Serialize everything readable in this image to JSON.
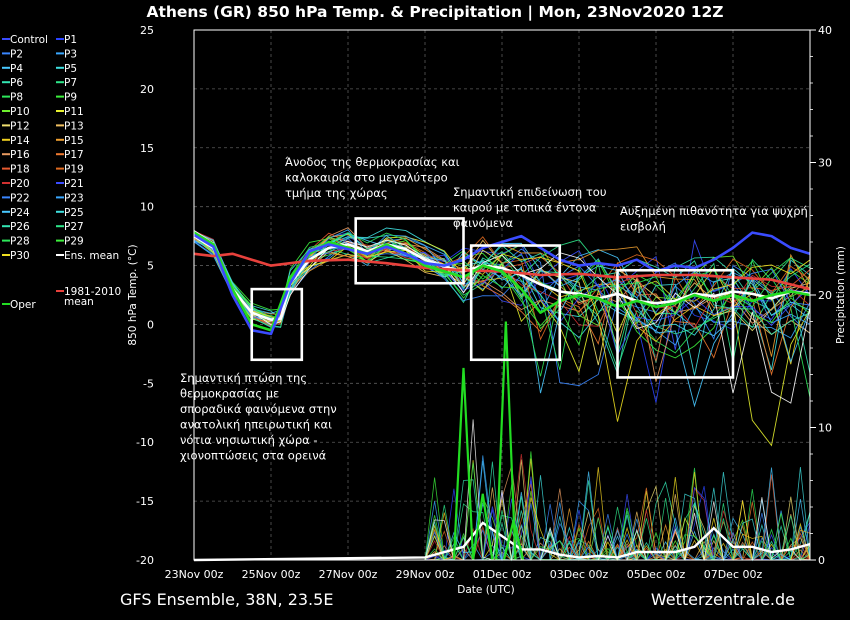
{
  "header": {
    "title": "Athens  (GR)  850 hPa Temp. & Precipitation | Mon, 23Nov2020 12Z"
  },
  "footer": {
    "model": "GFS Ensemble, 38N, 23.5E",
    "source": "Wetterzentrale.de"
  },
  "colors": {
    "background": "#000000",
    "grid": "#5a5a5a",
    "ensemble_mean": "#ffffff",
    "climate_mean": "#e8413c",
    "oper": "#22dd22",
    "control": "#3a4cff"
  },
  "chart_data": {
    "type": "line",
    "xlabel": "Date (UTC)",
    "ylabel": "850 hPa Temp. (°C)",
    "y2label": "Precipitation (mm)",
    "x_ticks": [
      "23Nov 00z",
      "25Nov 00z",
      "27Nov 00z",
      "29Nov 00z",
      "01Dec 00z",
      "03Dec 00z",
      "05Dec 00z",
      "07Dec 00z"
    ],
    "ylim": [
      -20,
      25
    ],
    "y_ticks": [
      25,
      20,
      15,
      10,
      5,
      0,
      -5,
      -10,
      -15,
      -20
    ],
    "y2lim": [
      0,
      40
    ],
    "y2_ticks": [
      40,
      30,
      20,
      10,
      0
    ],
    "grid": true,
    "legend_position": "left",
    "legend": [
      [
        "Control",
        "#3a4cff"
      ],
      [
        "P1",
        "#2b44ff"
      ],
      [
        "P2",
        "#3a86ff"
      ],
      [
        "P3",
        "#3aa8ff"
      ],
      [
        "P4",
        "#48c8ff"
      ],
      [
        "P5",
        "#3fe0e0"
      ],
      [
        "P6",
        "#33e6b3"
      ],
      [
        "P7",
        "#2ee68a"
      ],
      [
        "P8",
        "#2de85a"
      ],
      [
        "P9",
        "#3cf03c"
      ],
      [
        "P10",
        "#6ef02e"
      ],
      [
        "P11",
        "#e6f02e"
      ],
      [
        "P12",
        "#f0e070"
      ],
      [
        "P13",
        "#f0c060"
      ],
      [
        "P14",
        "#f0d020"
      ],
      [
        "P15",
        "#f0a030"
      ],
      [
        "P16",
        "#e89a60"
      ],
      [
        "P17",
        "#f07a30"
      ],
      [
        "P18",
        "#e85a30"
      ],
      [
        "P19",
        "#e06a20"
      ],
      [
        "P20",
        "#d03030"
      ],
      [
        "P21",
        "#3a4cff"
      ],
      [
        "P22",
        "#3a86ff"
      ],
      [
        "P23",
        "#3aa8ff"
      ],
      [
        "P24",
        "#48c8ff"
      ],
      [
        "P25",
        "#3fe0e0"
      ],
      [
        "P26",
        "#33e6b3"
      ],
      [
        "P27",
        "#2ee68a"
      ],
      [
        "P28",
        "#2de85a"
      ],
      [
        "P29",
        "#3cf03c"
      ],
      [
        "P30",
        "#f0e020"
      ],
      [
        "Ens. mean",
        "#ffffff"
      ],
      [
        "Oper",
        "#22dd22"
      ],
      [
        "1981-2010 mean",
        "#e8413c"
      ]
    ],
    "series": [
      {
        "name": "Ens. mean",
        "x_days": [
          0,
          0.5,
          1,
          1.5,
          2,
          2.25,
          2.5,
          3,
          3.5,
          4,
          4.5,
          5,
          5.5,
          6,
          6.5,
          7,
          7.5,
          8,
          8.5,
          9,
          9.5,
          10,
          10.5,
          11,
          11.5,
          12,
          12.5,
          13,
          13.5,
          14,
          14.5,
          15,
          15.5,
          16
        ],
        "values": [
          7.5,
          6.5,
          3,
          1,
          0.4,
          0.5,
          3.5,
          5.5,
          6.5,
          6.8,
          6.2,
          6.8,
          6.4,
          5.5,
          4.9,
          4.5,
          5,
          4.8,
          4.2,
          3.4,
          2.8,
          2.6,
          2.2,
          2.6,
          2.0,
          1.8,
          2.0,
          2.6,
          2.4,
          2.8,
          2.6,
          2.2,
          2.8,
          2.6
        ]
      },
      {
        "name": "1981-2010 mean",
        "x_days": [
          0,
          0.5,
          1,
          1.5,
          2,
          3,
          4,
          5,
          6,
          7,
          8,
          9,
          10,
          11,
          12,
          13,
          14,
          15,
          16
        ],
        "values": [
          6.0,
          5.8,
          6.0,
          5.5,
          5.0,
          5.4,
          5.5,
          5.2,
          4.8,
          4.6,
          4.5,
          4.2,
          4.3,
          4.0,
          4.2,
          4.2,
          4.0,
          3.8,
          3.0
        ]
      },
      {
        "name": "Oper",
        "x_days": [
          0,
          0.5,
          1,
          1.5,
          2,
          2.5,
          3,
          3.5,
          4,
          4.5,
          5,
          5.5,
          6,
          6.5,
          7,
          7.5,
          8,
          8.5,
          9,
          9.5,
          10,
          10.5,
          11,
          11.5,
          12,
          12.5,
          13,
          13.5,
          14,
          14.5,
          15,
          15.5,
          16
        ],
        "values": [
          7.8,
          6.8,
          3,
          0,
          -0.5,
          4,
          6,
          7,
          6.5,
          6,
          6.8,
          6,
          5,
          4.5,
          4,
          5,
          4.5,
          3,
          1,
          2,
          2.5,
          2.2,
          1.5,
          2.0,
          1.5,
          1.8,
          2.5,
          2.0,
          2.5,
          2.0,
          2.5,
          2.8,
          2.5
        ]
      },
      {
        "name": "Control",
        "x_days": [
          0,
          0.5,
          1,
          1.5,
          2,
          2.5,
          3,
          3.5,
          4,
          4.5,
          5,
          5.5,
          6,
          6.5,
          7,
          7.5,
          8,
          8.5,
          9,
          9.5,
          10,
          10.5,
          11,
          11.5,
          12,
          12.5,
          13,
          13.5,
          14,
          14.5,
          15,
          15.5,
          16
        ],
        "values": [
          7.6,
          6.6,
          2.5,
          -0.5,
          -0.8,
          3.5,
          6.2,
          6.8,
          6.4,
          6.0,
          6.6,
          6.0,
          5.2,
          5.0,
          5.5,
          6.5,
          7.0,
          7.5,
          6.5,
          5.5,
          5.0,
          5.2,
          5.0,
          5.5,
          4.5,
          5.0,
          4.8,
          5.5,
          6.5,
          7.8,
          7.5,
          6.5,
          6.0
        ]
      }
    ],
    "ens_mean_precip_mm": {
      "x_days": [
        0,
        6,
        7,
        7.5,
        8,
        8.5,
        9,
        9.5,
        10,
        10.5,
        11,
        11.5,
        12,
        12.5,
        13,
        13.5,
        14,
        14.5,
        15,
        15.5,
        16
      ],
      "values": [
        0,
        0.2,
        1.0,
        2.8,
        1.8,
        0.8,
        0.8,
        0.4,
        0.2,
        0.3,
        0.2,
        0.6,
        0.6,
        0.6,
        1.0,
        2.4,
        1.0,
        1.0,
        0.6,
        0.8,
        1.2
      ]
    },
    "annotations": [
      {
        "lines": [
          "Άνοδος της θερμοκρασίας και",
          "καλοκαιρία στο μεγαλύτερο",
          "τμήμα της χώρας"
        ]
      },
      {
        "lines": [
          "Σημαντική επιδείνωση του",
          "καιρού με τοπικά έντονα",
          "φαινόμενα"
        ]
      },
      {
        "lines": [
          "Αυξημένη πιθανότητα για ψυχρή",
          "εισβολή"
        ]
      },
      {
        "lines": [
          "Σημαντική πτώση της",
          "θερμοκρασίας με",
          "σποραδικά φαινόμενα στην",
          "ανατολική ηπειρωτική και",
          "νότια νησιωτική χώρα -",
          "χιονοπτώσεις στα ορεινά"
        ]
      }
    ],
    "highlight_boxes": [
      {
        "x_days": [
          1.5,
          2.8
        ],
        "temp_range": [
          -3,
          3
        ]
      },
      {
        "x_days": [
          4.2,
          7.0
        ],
        "temp_range": [
          3.5,
          9
        ]
      },
      {
        "x_days": [
          7.2,
          9.5
        ],
        "temp_range": [
          -3,
          6.7
        ]
      },
      {
        "x_days": [
          11.0,
          14.0
        ],
        "temp_range": [
          -4.5,
          4.6
        ]
      }
    ]
  }
}
